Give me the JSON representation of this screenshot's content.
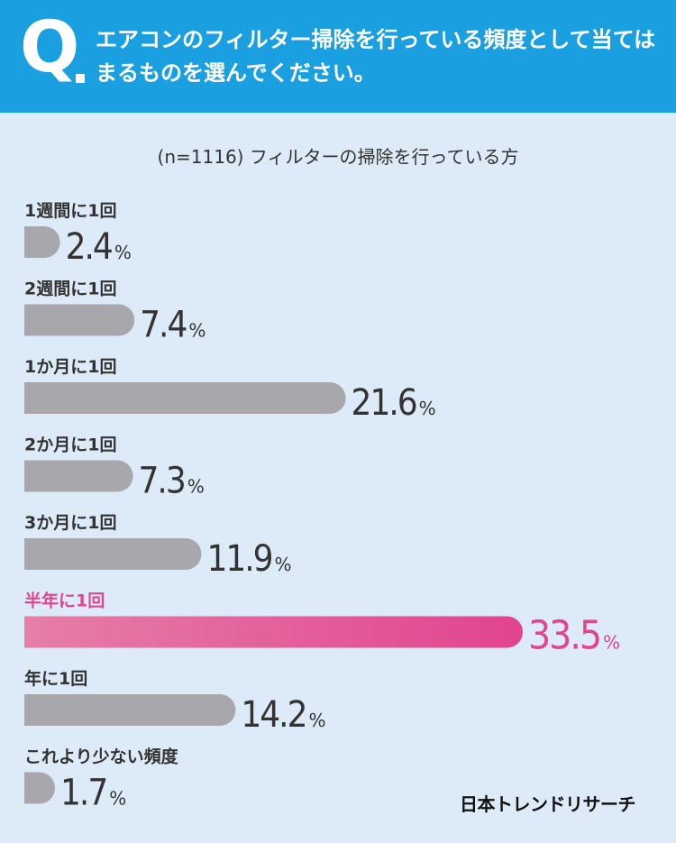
{
  "header": {
    "q_mark": "Q",
    "question": "エアコンのフィルター掃除を行っている頻度として当てはまるものを選んでください。"
  },
  "subtitle": "(n=1116) フィルターの掃除を行っている方",
  "brand": "日本トレンドリサーチ",
  "colors": {
    "bar": "#a7a7ac",
    "highlight": "#e2448f",
    "highlight_light": "#e67ea8",
    "label": "#333333",
    "value": "#333333"
  },
  "chart_data": {
    "type": "bar",
    "orientation": "horizontal",
    "categories": [
      "1週間に1回",
      "2週間に1回",
      "1か月に1回",
      "2か月に1回",
      "3か月に1回",
      "半年に1回",
      "年に1回",
      "これより少ない頻度"
    ],
    "values": [
      2.4,
      7.4,
      21.6,
      7.3,
      11.9,
      33.5,
      14.2,
      1.7
    ],
    "value_labels": [
      "2.4",
      "7.4",
      "21.6",
      "7.3",
      "11.9",
      "33.5",
      "14.2",
      "1.7"
    ],
    "unit": "%",
    "highlight_index": 5,
    "title": "",
    "xlabel": "",
    "ylabel": "",
    "grid": false
  }
}
